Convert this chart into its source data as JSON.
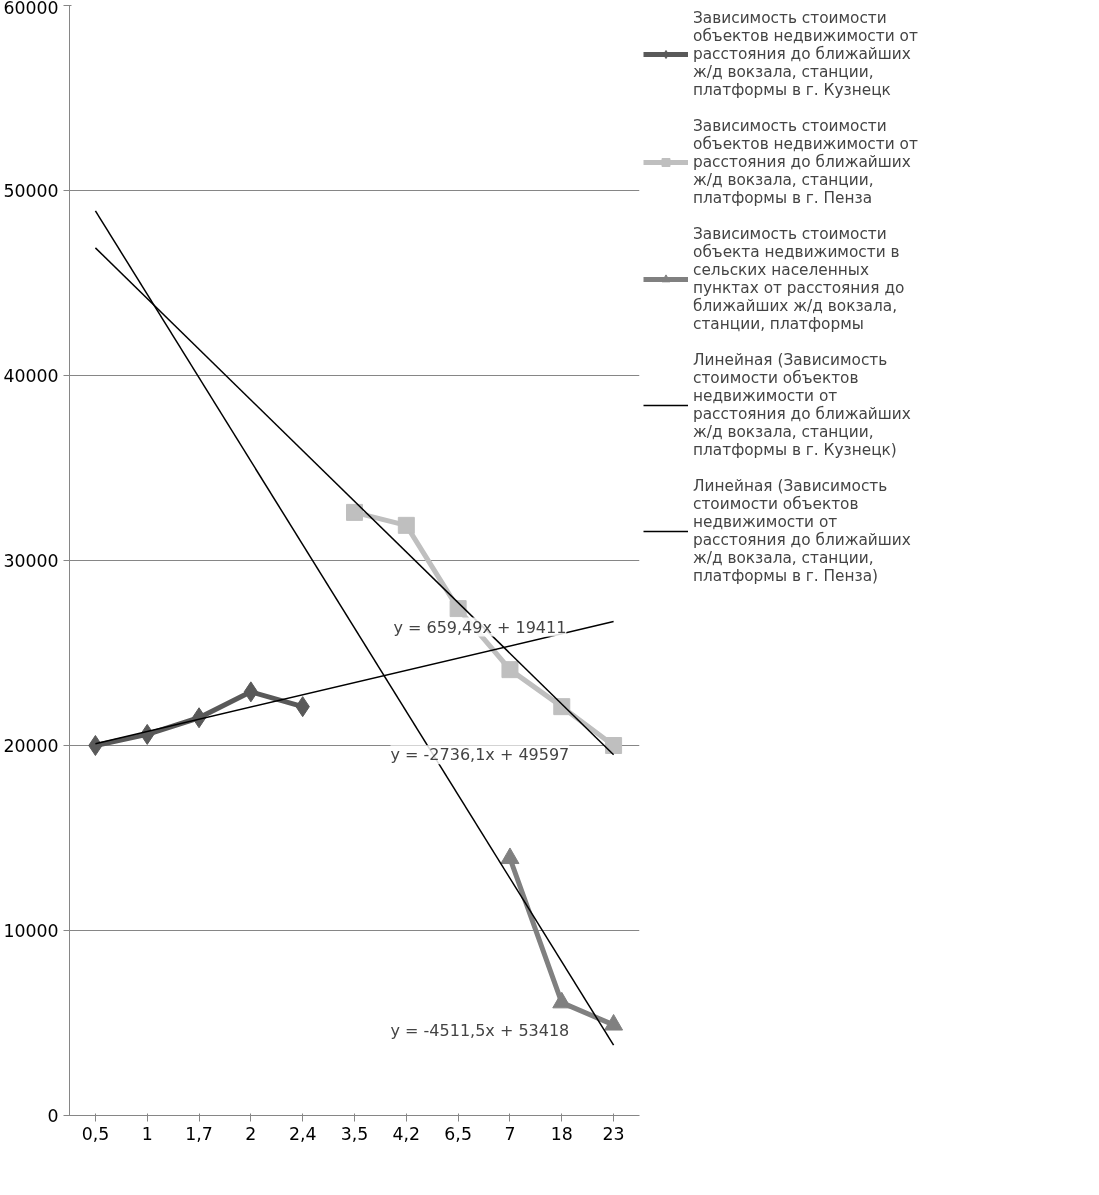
{
  "chart_data": {
    "type": "line",
    "categories": [
      "0,5",
      "1",
      "1,7",
      "2",
      "2,4",
      "3,5",
      "4,2",
      "6,5",
      "7",
      "18",
      "23"
    ],
    "ylim": [
      0,
      60000
    ],
    "yticks": [
      0,
      10000,
      20000,
      30000,
      40000,
      50000,
      60000
    ],
    "grid": "y",
    "legend": "right",
    "line_style": "solid",
    "series": [
      {
        "name": "Зависимость стоимости объектов недвижимости от расстояния до ближайших ж/д вокзала, станции, платформы в г. Кузнецк",
        "color": "#595959",
        "marker": "diamond",
        "values": [
          20000,
          20600,
          21500,
          22900,
          22100,
          null,
          null,
          null,
          null,
          null,
          null
        ]
      },
      {
        "name": "Зависимость стоимости объектов недвижимости от расстояния до ближайших ж/д вокзала, станции, платформы в г. Пенза",
        "color": "#bfbfbf",
        "marker": "square",
        "values": [
          null,
          null,
          null,
          null,
          null,
          32600,
          31900,
          27400,
          24100,
          22100,
          20000
        ]
      },
      {
        "name": "Зависимость стоимости объекта недвижимости в сельских населенных пунктах от расстояния до ближайших ж/д вокзала, станции, платформы",
        "color": "#808080",
        "marker": "triangle",
        "values": [
          null,
          null,
          null,
          null,
          null,
          null,
          null,
          null,
          13900,
          6100,
          4900
        ]
      },
      {
        "name": "Линейная (Зависимость стоимости объектов недвижимости от расстояния до ближайших ж/д вокзала, станции, платформы в г. Кузнецк)",
        "color": "#000000",
        "marker": "none",
        "x": [
          "0,5",
          "23"
        ],
        "values": [
          20100,
          26700
        ]
      },
      {
        "name": "Линейная (Зависимость стоимости объектов недвижимости от расстояния до ближайших ж/д вокзала, станции, платформы в г. Пенза)",
        "color": "#000000",
        "marker": "none",
        "x": [
          "0,5",
          "23"
        ],
        "values": [
          46900,
          19500
        ]
      },
      {
        "color": "#000000",
        "marker": "none",
        "x": [
          "0,5",
          "23"
        ],
        "values": [
          48900,
          3800
        ]
      }
    ],
    "annotations": [
      "y = 659,49x + 19411",
      "y = -2736,1x + 49597",
      "y = -4511,5x + 53418"
    ]
  }
}
